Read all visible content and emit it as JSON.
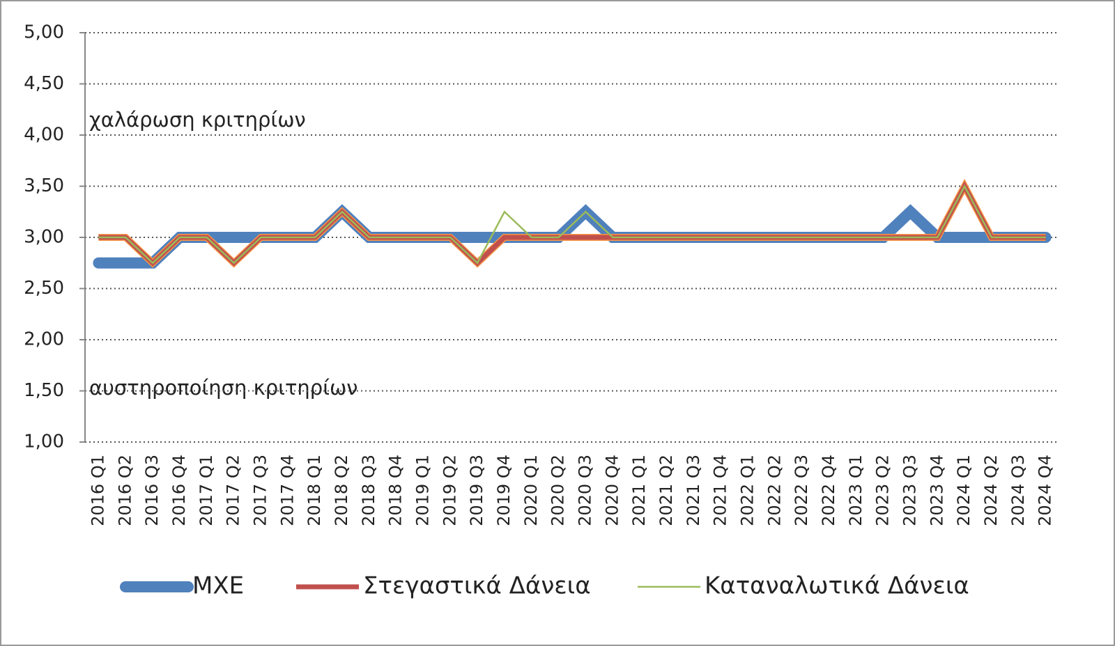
{
  "chart_data": {
    "type": "line",
    "annotations": [
      "χαλάρωση κριτηρίων",
      "αυστηροποίηση κριτηρίων"
    ],
    "categories": [
      "2016 Q1",
      "2016 Q2",
      "2016 Q3",
      "2016 Q4",
      "2017 Q1",
      "2017 Q2",
      "2017 Q3",
      "2017 Q4",
      "2018 Q1",
      "2018 Q2",
      "2018 Q3",
      "2018 Q4",
      "2019 Q1",
      "2019 Q2",
      "2019 Q3",
      "2019 Q4",
      "2020 Q1",
      "2020 Q2",
      "2020 Q3",
      "2020 Q4",
      "2021 Q1",
      "2021 Q2",
      "2021 Q3",
      "2021 Q4",
      "2022 Q1",
      "2022 Q2",
      "2022 Q3",
      "2022 Q4",
      "2023 Q1",
      "2023 Q2",
      "2023 Q3",
      "2023 Q4",
      "2024 Q1",
      "2024 Q2",
      "2024 Q3",
      "2024 Q4"
    ],
    "series": [
      {
        "name": "ΜΧΕ",
        "color": "#4f81bd",
        "values": [
          2.75,
          2.75,
          2.75,
          3,
          3,
          3,
          3,
          3,
          3,
          3.25,
          3,
          3,
          3,
          3,
          3,
          3,
          3,
          3,
          3.25,
          3,
          3,
          3,
          3,
          3,
          3,
          3,
          3,
          3,
          3,
          3,
          3.25,
          3,
          3,
          3,
          3,
          3
        ]
      },
      {
        "name": "Στεγαστικά Δάνεια",
        "color": "#c0504d",
        "values": [
          3,
          3,
          2.75,
          3,
          3,
          2.75,
          3,
          3,
          3,
          3.25,
          3,
          3,
          3,
          3,
          2.75,
          3,
          3,
          3,
          3,
          3,
          3,
          3,
          3,
          3,
          3,
          3,
          3,
          3,
          3,
          3,
          3,
          3,
          3.5,
          3,
          3,
          3
        ]
      },
      {
        "name": "Καταναλωτικά Δάνεια",
        "color": "#9bbb59",
        "values": [
          3,
          3,
          2.75,
          3,
          3,
          2.75,
          3,
          3,
          3,
          3.25,
          3,
          3,
          3,
          3,
          2.75,
          3.25,
          3,
          3,
          3.25,
          3,
          3,
          3,
          3,
          3,
          3,
          3,
          3,
          3,
          3,
          3,
          3,
          3,
          3.5,
          3,
          3,
          3
        ]
      }
    ],
    "ylim": [
      1,
      5
    ],
    "yticks": [
      {
        "value": 1,
        "label": "1,00"
      },
      {
        "value": 1.5,
        "label": "1,50"
      },
      {
        "value": 2,
        "label": "2,00"
      },
      {
        "value": 2.5,
        "label": "2,50"
      },
      {
        "value": 3,
        "label": "3,00"
      },
      {
        "value": 3.5,
        "label": "3,50"
      },
      {
        "value": 4,
        "label": "4,00"
      },
      {
        "value": 4.5,
        "label": "4,50"
      },
      {
        "value": 5,
        "label": "5,00"
      }
    ],
    "grid": true,
    "legend": "bottom"
  }
}
